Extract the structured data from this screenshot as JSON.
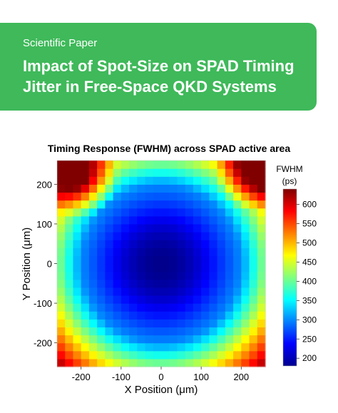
{
  "banner": {
    "kicker": "Scientific Paper",
    "title": "Impact of Spot-Size on SPAD Timing Jitter in Free-Space QKD Systems",
    "color": "#3fb95a"
  },
  "chart_data": {
    "type": "heatmap",
    "title": "Timing Response (FWHM) across SPAD active area",
    "xlabel": "X Position (μm)",
    "ylabel": "Y Position (μm)",
    "xlim": [
      -260,
      260
    ],
    "ylim": [
      -260,
      260
    ],
    "xticks": [
      -200,
      -100,
      0,
      100,
      200
    ],
    "yticks": [
      -200,
      -100,
      0,
      100,
      200
    ],
    "colorbar": {
      "label": "FWHM",
      "unit": "(ps)",
      "range": [
        180,
        640
      ],
      "ticks": [
        200,
        250,
        300,
        350,
        400,
        450,
        500,
        550,
        600
      ],
      "colormap": "jet"
    },
    "field": {
      "center_value": 185,
      "active_radius": 200,
      "plateau_value": 230,
      "edge_value": 400,
      "corner_value": 620
    }
  }
}
